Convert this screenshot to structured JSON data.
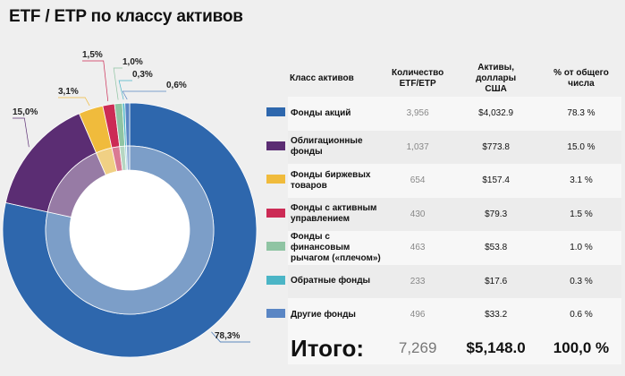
{
  "title": "ETF / ETP по классу активов",
  "chart_data": {
    "type": "pie",
    "donut": true,
    "start": "top",
    "direction": "clockwise",
    "categories": [
      "Фонды акций",
      "Облигационные фонды",
      "Фонды биржевых товаров",
      "Фонды с активным управлением",
      "Фонды с финансовым рычагом («плечом»)",
      "Обратные фонды",
      "Другие фонды"
    ],
    "values": [
      78.3,
      15.0,
      3.1,
      1.5,
      1.0,
      0.3,
      0.6
    ],
    "data_labels": [
      "78,3%",
      "15,0%",
      "3,1%",
      "1,5%",
      "1,0%",
      "0,3%",
      "0,6%"
    ],
    "colors": [
      "#2e67ad",
      "#5b2d73",
      "#f0bb3c",
      "#cc2b55",
      "#8fc4a3",
      "#4bb5c6",
      "#5a86c4"
    ]
  },
  "table": {
    "headers": [
      "Класс активов",
      "Количество ETF/ETP",
      "Активы, доллары США",
      "% от общего числа"
    ],
    "rows": [
      {
        "name": "Фонды акций",
        "count": "3,956",
        "assets": "$4,032.9",
        "pct": "78.3 %"
      },
      {
        "name": "Облигационные фонды",
        "count": "1,037",
        "assets": "$773.8",
        "pct": "15.0 %"
      },
      {
        "name": "Фонды биржевых товаров",
        "count": "654",
        "assets": "$157.4",
        "pct": "3.1 %"
      },
      {
        "name": "Фонды с активным управлением",
        "count": "430",
        "assets": "$79.3",
        "pct": "1.5 %"
      },
      {
        "name": "Фонды с финансовым рычагом («плечом»)",
        "count": "463",
        "assets": "$53.8",
        "pct": "1.0 %"
      },
      {
        "name": "Обратные фонды",
        "count": "233",
        "assets": "$17.6",
        "pct": "0.3 %"
      },
      {
        "name": "Другие фонды",
        "count": "496",
        "assets": "$33.2",
        "pct": "0.6 %"
      }
    ],
    "total": {
      "label": "Итого:",
      "count": "7,269",
      "assets": "$5,148.0",
      "pct": "100,0 %"
    }
  }
}
